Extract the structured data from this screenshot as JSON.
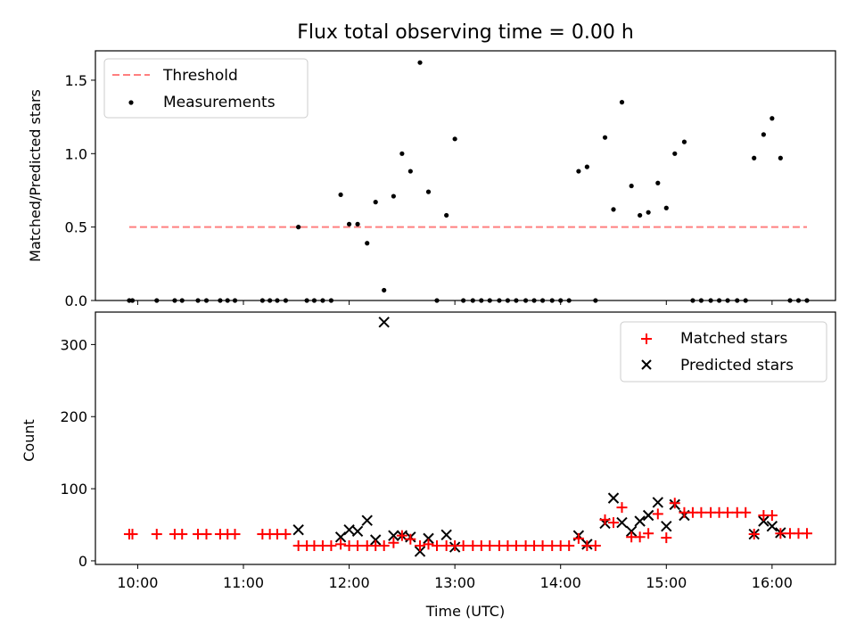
{
  "chart_data": [
    {
      "type": "scatter",
      "title": "Flux total observing time = 0.00 h",
      "xlabel": "",
      "ylabel": "Matched/Predicted stars",
      "xlim_hours": [
        9.6,
        16.6
      ],
      "ylim": [
        0,
        1.7
      ],
      "yticks": [
        0.0,
        0.5,
        1.0,
        1.5
      ],
      "ytick_labels": [
        "0.0",
        "0.5",
        "1.0",
        "1.5"
      ],
      "legend_loc": "upper-left",
      "legend": {
        "threshold_label": "Threshold",
        "measurements_label": "Measurements"
      },
      "threshold": {
        "value": 0.5,
        "x_start": 9.92,
        "x_end": 16.33,
        "color": "#ff7f7f"
      },
      "measurements": {
        "x": [
          9.92,
          9.95,
          10.18,
          10.35,
          10.42,
          10.57,
          10.65,
          10.78,
          10.85,
          10.92,
          11.18,
          11.25,
          11.32,
          11.4,
          11.52,
          11.6,
          11.67,
          11.75,
          11.83,
          11.92,
          12.0,
          12.08,
          12.17,
          12.25,
          12.33,
          12.42,
          12.5,
          12.58,
          12.67,
          12.75,
          12.83,
          12.92,
          13.0,
          13.08,
          13.17,
          13.25,
          13.33,
          13.42,
          13.5,
          13.58,
          13.67,
          13.75,
          13.83,
          13.92,
          14.0,
          14.08,
          14.17,
          14.25,
          14.33,
          14.42,
          14.5,
          14.58,
          14.67,
          14.75,
          14.83,
          14.92,
          15.0,
          15.08,
          15.17,
          15.25,
          15.33,
          15.42,
          15.5,
          15.58,
          15.67,
          15.75,
          15.83,
          15.92,
          16.0,
          16.08,
          16.17,
          16.25,
          16.33
        ],
        "y": [
          0,
          0,
          0,
          0,
          0,
          0,
          0,
          0,
          0,
          0,
          0,
          0,
          0,
          0,
          0.5,
          0,
          0,
          0,
          0,
          0.72,
          0.52,
          0.52,
          0.39,
          0.67,
          0.07,
          0.71,
          1.0,
          0.88,
          1.62,
          0.74,
          0,
          0.58,
          1.1,
          0,
          0,
          0,
          0,
          0,
          0,
          0,
          0,
          0,
          0,
          0,
          0,
          0,
          0.88,
          0.91,
          0,
          1.11,
          0.62,
          1.35,
          0.78,
          0.58,
          0.6,
          0.8,
          0.63,
          1.0,
          1.08,
          0,
          0,
          0,
          0,
          0,
          0,
          0,
          0.97,
          1.13,
          1.24,
          0.97,
          0,
          0,
          0
        ]
      }
    },
    {
      "type": "scatter",
      "title": "",
      "xlabel": "Time (UTC)",
      "ylabel": "Count",
      "xlim_hours": [
        9.6,
        16.6
      ],
      "ylim": [
        -5,
        345
      ],
      "yticks": [
        0,
        100,
        200,
        300
      ],
      "ytick_labels": [
        "0",
        "100",
        "200",
        "300"
      ],
      "xticks_hours": [
        10,
        11,
        12,
        13,
        14,
        15,
        16
      ],
      "xtick_labels": [
        "10:00",
        "11:00",
        "12:00",
        "13:00",
        "14:00",
        "15:00",
        "16:00"
      ],
      "legend_loc": "upper-right",
      "legend": {
        "matched_label": "Matched stars",
        "predicted_label": "Predicted stars"
      },
      "matched_color": "#ff0000",
      "predicted_color": "#000000",
      "matched": {
        "x": [
          9.92,
          9.95,
          10.18,
          10.35,
          10.42,
          10.57,
          10.65,
          10.78,
          10.85,
          10.92,
          11.18,
          11.25,
          11.32,
          11.4,
          11.52,
          11.6,
          11.67,
          11.75,
          11.83,
          11.92,
          12.0,
          12.08,
          12.17,
          12.25,
          12.33,
          12.42,
          12.5,
          12.58,
          12.67,
          12.75,
          12.83,
          12.92,
          13.0,
          13.08,
          13.17,
          13.25,
          13.33,
          13.42,
          13.5,
          13.58,
          13.67,
          13.75,
          13.83,
          13.92,
          14.0,
          14.08,
          14.17,
          14.25,
          14.33,
          14.42,
          14.5,
          14.58,
          14.67,
          14.75,
          14.83,
          14.92,
          15.0,
          15.08,
          15.17,
          15.25,
          15.33,
          15.42,
          15.5,
          15.58,
          15.67,
          15.75,
          15.83,
          15.92,
          16.0,
          16.08,
          16.17,
          16.25,
          16.33
        ],
        "y": [
          37,
          37,
          37,
          37,
          37,
          37,
          37,
          37,
          37,
          37,
          37,
          37,
          37,
          37,
          21,
          21,
          21,
          21,
          21,
          23,
          21,
          21,
          21,
          21,
          21,
          25,
          35,
          30,
          21,
          23,
          21,
          21,
          21,
          21,
          21,
          21,
          21,
          21,
          21,
          21,
          21,
          21,
          21,
          21,
          21,
          21,
          31,
          21,
          21,
          57,
          53,
          74,
          33,
          33,
          38,
          65,
          32,
          80,
          67,
          67,
          67,
          67,
          67,
          67,
          67,
          67,
          37,
          63,
          63,
          38,
          38,
          38,
          38
        ]
      },
      "predicted": {
        "x": [
          11.52,
          11.92,
          12.0,
          12.08,
          12.17,
          12.25,
          12.33,
          12.42,
          12.5,
          12.58,
          12.67,
          12.75,
          12.92,
          13.0,
          14.17,
          14.25,
          14.42,
          14.5,
          14.58,
          14.67,
          14.75,
          14.83,
          14.92,
          15.0,
          15.08,
          15.17,
          15.83,
          15.92,
          16.0,
          16.08
        ],
        "y": [
          43,
          33,
          43,
          41,
          56,
          29,
          331,
          35,
          35,
          33,
          13,
          31,
          36,
          19,
          35,
          23,
          52,
          87,
          53,
          41,
          55,
          63,
          81,
          48,
          78,
          63,
          37,
          55,
          48,
          39
        ]
      }
    }
  ]
}
